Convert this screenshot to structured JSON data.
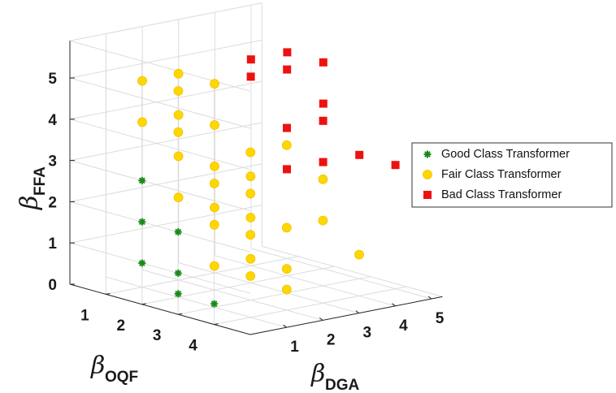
{
  "chart_data": {
    "type": "scatter3d",
    "axes": {
      "x": {
        "label": "β",
        "label_sub": "OQF",
        "ticks": [
          1,
          2,
          3,
          4
        ],
        "range": [
          0,
          5
        ]
      },
      "y": {
        "label": "β",
        "label_sub": "DGA",
        "ticks": [
          1,
          2,
          3,
          4,
          5
        ],
        "range": [
          0,
          5.3
        ]
      },
      "z": {
        "label": "β",
        "label_sub": "FFA",
        "ticks": [
          0,
          1,
          2,
          3,
          4,
          5
        ],
        "range": [
          0,
          5.9
        ]
      }
    },
    "grid": true,
    "legend": {
      "position": "right"
    },
    "series": [
      {
        "name": "Good Class Transformer",
        "marker": "asterisk",
        "color": "#1a8a1a",
        "points": [
          [
            2,
            0,
            3
          ],
          [
            2,
            0,
            2
          ],
          [
            2,
            0,
            1
          ],
          [
            3,
            0,
            2
          ],
          [
            3,
            0,
            1
          ],
          [
            3,
            0,
            0.5
          ],
          [
            4,
            0,
            0.5
          ]
        ]
      },
      {
        "name": "Fair Class Transformer",
        "marker": "circle",
        "color": "#ffd700",
        "points": [
          [
            1,
            1,
            5
          ],
          [
            2,
            1,
            5
          ],
          [
            1,
            1,
            4
          ],
          [
            2,
            1,
            4
          ],
          [
            1,
            2,
            5
          ],
          [
            2,
            2,
            5
          ],
          [
            1,
            2,
            4
          ],
          [
            2,
            2,
            4
          ],
          [
            1,
            2,
            3
          ],
          [
            2,
            2,
            3
          ],
          [
            1,
            2,
            2
          ],
          [
            2,
            2,
            2
          ],
          [
            3,
            1,
            2
          ],
          [
            3,
            1,
            1
          ],
          [
            3,
            2,
            2
          ],
          [
            3,
            2,
            1
          ],
          [
            4,
            2,
            2
          ],
          [
            4,
            2,
            1
          ],
          [
            3,
            1,
            3
          ],
          [
            3,
            2,
            3
          ],
          [
            4,
            1,
            4
          ],
          [
            4,
            2,
            4
          ],
          [
            4,
            1,
            3
          ],
          [
            4,
            1,
            1
          ],
          [
            4,
            2,
            0.5
          ],
          [
            4,
            1,
            2
          ],
          [
            4,
            3,
            3
          ],
          [
            4,
            3,
            2
          ],
          [
            4,
            4,
            1
          ]
        ]
      },
      {
        "name": "Bad Class Transformer",
        "marker": "square",
        "color": "#ee1111",
        "points": [
          [
            2,
            3,
            5
          ],
          [
            1,
            4,
            5
          ],
          [
            2,
            4,
            5
          ],
          [
            1,
            5,
            5
          ],
          [
            2,
            5,
            5
          ],
          [
            3,
            3,
            4
          ],
          [
            3,
            4,
            4
          ],
          [
            3,
            3,
            3
          ],
          [
            2,
            5,
            4
          ],
          [
            3,
            4,
            3
          ],
          [
            3,
            5,
            3
          ],
          [
            4,
            5,
            3
          ]
        ]
      }
    ]
  }
}
